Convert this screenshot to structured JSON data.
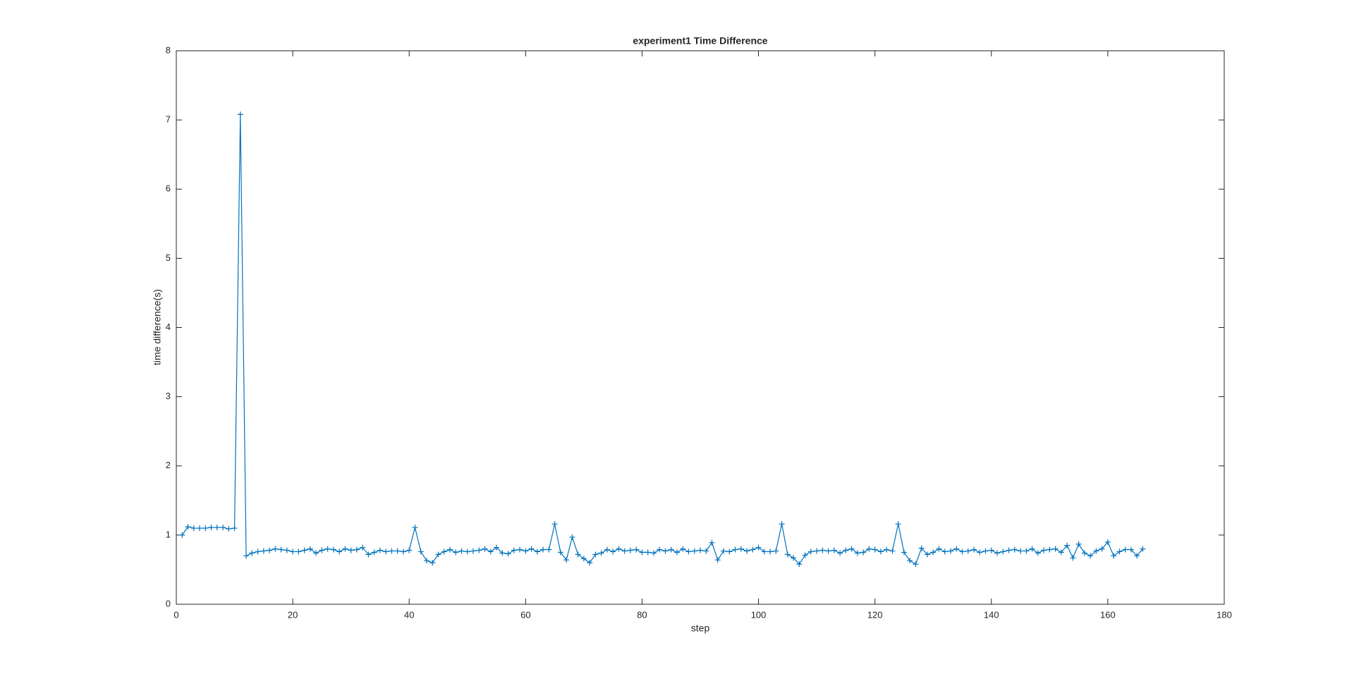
{
  "chart_data": {
    "type": "line",
    "title": "experiment1  Time Difference",
    "x_label": "step",
    "y_label": "time difference(s)",
    "x": [
      1,
      2,
      3,
      4,
      5,
      6,
      7,
      8,
      9,
      10,
      11,
      12,
      13,
      14,
      15,
      16,
      17,
      18,
      19,
      20,
      21,
      22,
      23,
      24,
      25,
      26,
      27,
      28,
      29,
      30,
      31,
      32,
      33,
      34,
      35,
      36,
      37,
      38,
      39,
      40,
      41,
      42,
      43,
      44,
      45,
      46,
      47,
      48,
      49,
      50,
      51,
      52,
      53,
      54,
      55,
      56,
      57,
      58,
      59,
      60,
      61,
      62,
      63,
      64,
      65,
      66,
      67,
      68,
      69,
      70,
      71,
      72,
      73,
      74,
      75,
      76,
      77,
      78,
      79,
      80,
      81,
      82,
      83,
      84,
      85,
      86,
      87,
      88,
      89,
      90,
      91,
      92,
      93,
      94,
      95,
      96,
      97,
      98,
      99,
      100,
      101,
      102,
      103,
      104,
      105,
      106,
      107,
      108,
      109,
      110,
      111,
      112,
      113,
      114,
      115,
      116,
      117,
      118,
      119,
      120,
      121,
      122,
      123,
      124,
      125,
      126,
      127,
      128,
      129,
      130,
      131,
      132,
      133,
      134,
      135,
      136,
      137,
      138,
      139,
      140,
      141,
      142,
      143,
      144,
      145,
      146,
      147,
      148,
      149,
      150,
      151,
      152,
      153,
      154,
      155,
      156,
      157,
      158,
      159,
      160,
      161,
      162,
      163,
      164,
      165,
      166
    ],
    "series": [
      {
        "color": "#0072bd",
        "values": [
          1.0,
          1.12,
          1.1,
          1.1,
          1.1,
          1.11,
          1.11,
          1.11,
          1.09,
          1.1,
          7.08,
          0.7,
          0.74,
          0.76,
          0.77,
          0.78,
          0.8,
          0.79,
          0.78,
          0.76,
          0.76,
          0.78,
          0.8,
          0.74,
          0.78,
          0.8,
          0.79,
          0.76,
          0.8,
          0.78,
          0.79,
          0.82,
          0.72,
          0.75,
          0.78,
          0.76,
          0.77,
          0.77,
          0.76,
          0.78,
          1.11,
          0.76,
          0.63,
          0.6,
          0.72,
          0.76,
          0.79,
          0.75,
          0.77,
          0.76,
          0.77,
          0.78,
          0.8,
          0.76,
          0.82,
          0.74,
          0.73,
          0.78,
          0.79,
          0.77,
          0.8,
          0.76,
          0.79,
          0.79,
          1.16,
          0.75,
          0.64,
          0.97,
          0.72,
          0.66,
          0.6,
          0.72,
          0.74,
          0.79,
          0.76,
          0.8,
          0.77,
          0.78,
          0.79,
          0.75,
          0.75,
          0.74,
          0.79,
          0.77,
          0.79,
          0.75,
          0.8,
          0.76,
          0.77,
          0.78,
          0.77,
          0.89,
          0.64,
          0.77,
          0.76,
          0.79,
          0.8,
          0.77,
          0.79,
          0.82,
          0.76,
          0.76,
          0.77,
          1.16,
          0.72,
          0.67,
          0.58,
          0.71,
          0.76,
          0.77,
          0.78,
          0.77,
          0.78,
          0.74,
          0.78,
          0.8,
          0.74,
          0.75,
          0.8,
          0.79,
          0.76,
          0.79,
          0.77,
          1.16,
          0.75,
          0.63,
          0.58,
          0.81,
          0.72,
          0.75,
          0.8,
          0.76,
          0.77,
          0.8,
          0.76,
          0.77,
          0.79,
          0.75,
          0.77,
          0.78,
          0.74,
          0.76,
          0.78,
          0.79,
          0.77,
          0.77,
          0.8,
          0.74,
          0.78,
          0.79,
          0.8,
          0.75,
          0.85,
          0.67,
          0.87,
          0.74,
          0.7,
          0.77,
          0.8,
          0.9,
          0.7,
          0.76,
          0.79,
          0.79,
          0.7,
          0.8
        ]
      }
    ],
    "xlim": [
      0,
      180
    ],
    "xticks": [
      0,
      20,
      40,
      60,
      80,
      100,
      120,
      140,
      160,
      180
    ],
    "ylim": [
      0,
      8
    ],
    "yticks": [
      0,
      1,
      2,
      3,
      4,
      5,
      6,
      7,
      8
    ],
    "grid": false,
    "marker": "+"
  }
}
